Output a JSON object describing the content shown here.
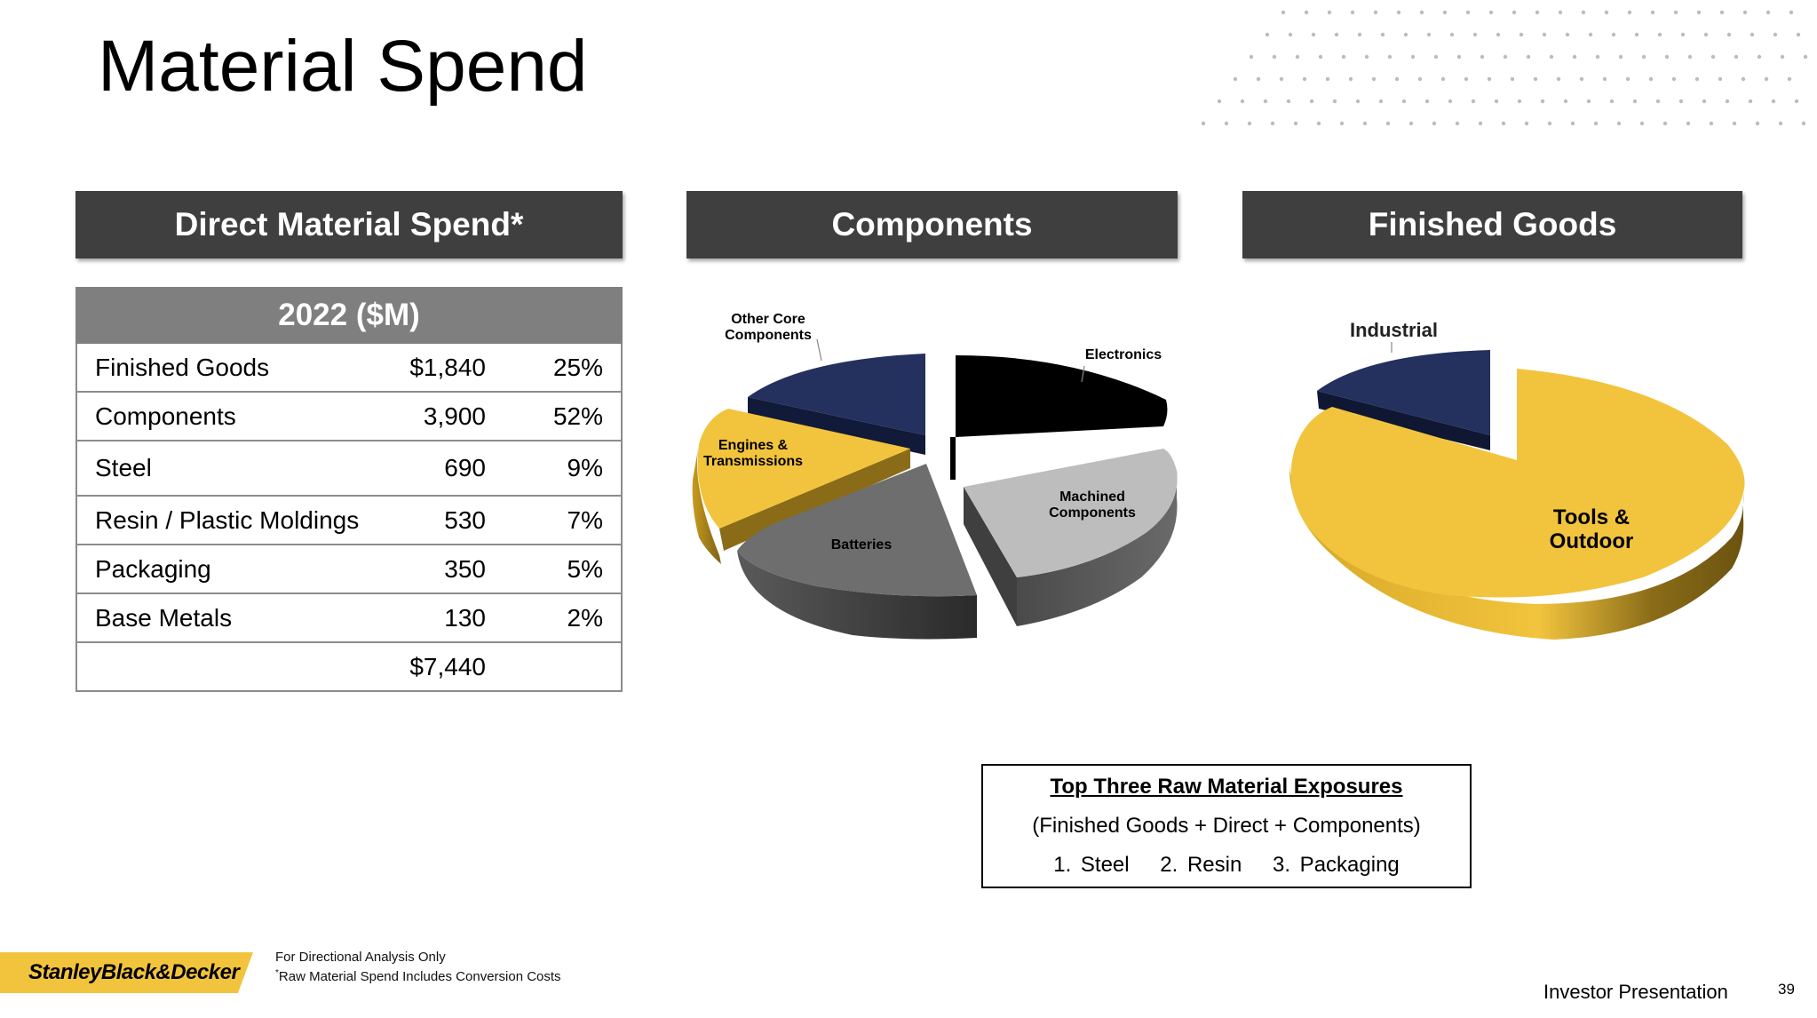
{
  "title": "Material Spend",
  "colors": {
    "band": "#3f3f3f",
    "yellow": "#f2c43d",
    "navy": "#24305e",
    "black": "#000000",
    "grey": "#6e6e6e",
    "lightgrey": "#bdbdbd"
  },
  "sections": {
    "direct": "Direct Material Spend*",
    "components": "Components",
    "finished": "Finished Goods"
  },
  "table": {
    "header": "2022 ($M)",
    "rows": [
      {
        "label": "Finished Goods",
        "amount": "$1,840",
        "pct": "25%"
      },
      {
        "label": "Components",
        "amount": "3,900",
        "pct": "52%"
      },
      {
        "label": "Steel",
        "amount": "690",
        "pct": "9%"
      },
      {
        "label": "Resin / Plastic Moldings",
        "amount": "530",
        "pct": "7%"
      },
      {
        "label": "Packaging",
        "amount": "350",
        "pct": "5%"
      },
      {
        "label": "Base Metals",
        "amount": "130",
        "pct": "2%"
      }
    ],
    "total": "$7,440"
  },
  "chart_data": [
    {
      "type": "pie",
      "title": "Components",
      "slices": [
        {
          "label": "Electronics",
          "color": "#000000"
        },
        {
          "label": "Machined Components",
          "color": "#bdbdbd"
        },
        {
          "label": "Batteries",
          "color": "#6e6e6e"
        },
        {
          "label": "Engines & Transmissions",
          "color": "#f2c43d"
        },
        {
          "label": "Other Core Components",
          "color": "#24305e"
        }
      ]
    },
    {
      "type": "pie",
      "title": "Finished Goods",
      "slices": [
        {
          "label": "Tools & Outdoor",
          "color": "#f2c43d"
        },
        {
          "label": "Industrial",
          "color": "#24305e"
        }
      ]
    }
  ],
  "pie_labels": {
    "other_core_1": "Other Core",
    "other_core_2": "Components",
    "electronics": "Electronics",
    "engines_1": "Engines &",
    "engines_2": "Transmissions",
    "machined_1": "Machined",
    "machined_2": "Components",
    "batteries": "Batteries",
    "industrial": "Industrial",
    "tools_1": "Tools &",
    "tools_2": "Outdoor"
  },
  "callout": {
    "heading": "Top Three Raw Material Exposures",
    "sub": "(Finished Goods + Direct + Components)",
    "items": [
      "1. Steel",
      "2. Resin",
      "3. Packaging"
    ]
  },
  "footer": {
    "logo": "StanleyBlack&Decker",
    "note1": "For Directional Analysis Only",
    "note2_mark": "*",
    "note2": "Raw Material Spend Includes Conversion Costs",
    "presentation": "Investor Presentation",
    "page": "39"
  }
}
